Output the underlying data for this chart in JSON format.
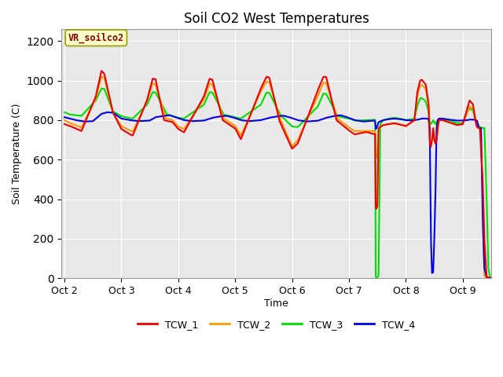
{
  "title": "Soil CO2 West Temperatures",
  "xlabel": "Time",
  "ylabel": "Soil Temperature (C)",
  "annotation_text": "VR_soilco2",
  "ylim": [
    0,
    1260
  ],
  "yticks": [
    0,
    200,
    400,
    600,
    800,
    1000,
    1200
  ],
  "xtick_labels": [
    "Oct 2",
    "Oct 3",
    "Oct 4",
    "Oct 5",
    "Oct 6",
    "Oct 7",
    "Oct 8",
    "Oct 9"
  ],
  "xtick_positions": [
    0,
    1,
    2,
    3,
    4,
    5,
    6,
    7
  ],
  "colors": {
    "TCW_1": "#ee0000",
    "TCW_2": "#ff9900",
    "TCW_3": "#00dd00",
    "TCW_4": "#0000ee"
  },
  "axes_facecolor": "#e8e8e8",
  "fig_facecolor": "#ffffff",
  "grid_color": "#ffffff",
  "linewidth": 1.5
}
